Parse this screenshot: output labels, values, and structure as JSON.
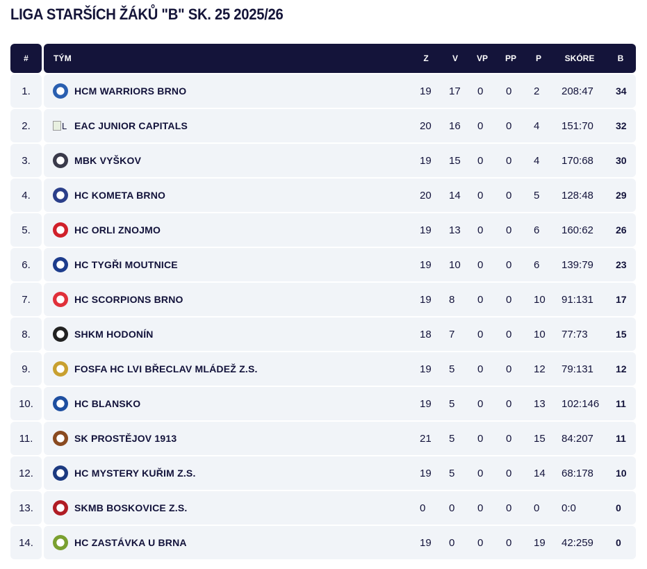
{
  "title": "LIGA STARŠÍCH ŽÁKŮ \"B\" SK. 25 2025/26",
  "header": {
    "rank": "#",
    "team": "TÝM",
    "z": "Z",
    "v": "V",
    "vp": "VP",
    "pp": "PP",
    "p": "P",
    "score": "SKÓRE",
    "b": "B"
  },
  "rows": [
    {
      "rank": "1.",
      "team": "HCM WARRIORS BRNO",
      "z": "19",
      "v": "17",
      "vp": "0",
      "pp": "0",
      "p": "2",
      "score": "208:47",
      "b": "34",
      "logo": "#2a5fb0"
    },
    {
      "rank": "2.",
      "team": "EAC JUNIOR CAPITALS",
      "z": "20",
      "v": "16",
      "vp": "0",
      "pp": "0",
      "p": "4",
      "score": "151:70",
      "b": "32",
      "logo": "broken",
      "alt": "L"
    },
    {
      "rank": "3.",
      "team": "MBK VYŠKOV",
      "z": "19",
      "v": "15",
      "vp": "0",
      "pp": "0",
      "p": "4",
      "score": "170:68",
      "b": "30",
      "logo": "#3a3a4a"
    },
    {
      "rank": "4.",
      "team": "HC KOMETA BRNO",
      "z": "20",
      "v": "14",
      "vp": "0",
      "pp": "0",
      "p": "5",
      "score": "128:48",
      "b": "29",
      "logo": "#2b3f8a"
    },
    {
      "rank": "5.",
      "team": "HC ORLI ZNOJMO",
      "z": "19",
      "v": "13",
      "vp": "0",
      "pp": "0",
      "p": "6",
      "score": "160:62",
      "b": "26",
      "logo": "#d0202a"
    },
    {
      "rank": "6.",
      "team": "HC TYGŘI MOUTNICE",
      "z": "19",
      "v": "10",
      "vp": "0",
      "pp": "0",
      "p": "6",
      "score": "139:79",
      "b": "23",
      "logo": "#1d3c8c"
    },
    {
      "rank": "7.",
      "team": "HC SCORPIONS BRNO",
      "z": "19",
      "v": "8",
      "vp": "0",
      "pp": "0",
      "p": "10",
      "score": "91:131",
      "b": "17",
      "logo": "#e0303a"
    },
    {
      "rank": "8.",
      "team": "SHKM HODONÍN",
      "z": "18",
      "v": "7",
      "vp": "0",
      "pp": "0",
      "p": "10",
      "score": "77:73",
      "b": "15",
      "logo": "#222222"
    },
    {
      "rank": "9.",
      "team": "FOSFA HC LVI BŘECLAV MLÁDEŽ Z.S.",
      "z": "19",
      "v": "5",
      "vp": "0",
      "pp": "0",
      "p": "12",
      "score": "79:131",
      "b": "12",
      "logo": "#c8a030"
    },
    {
      "rank": "10.",
      "team": "HC BLANSKO",
      "z": "19",
      "v": "5",
      "vp": "0",
      "pp": "0",
      "p": "13",
      "score": "102:146",
      "b": "11",
      "logo": "#1e4fa0"
    },
    {
      "rank": "11.",
      "team": "SK PROSTĚJOV 1913",
      "z": "21",
      "v": "5",
      "vp": "0",
      "pp": "0",
      "p": "15",
      "score": "84:207",
      "b": "11",
      "logo": "#8a4a20"
    },
    {
      "rank": "12.",
      "team": "HC MYSTERY KUŘIM Z.S.",
      "z": "19",
      "v": "5",
      "vp": "0",
      "pp": "0",
      "p": "14",
      "score": "68:178",
      "b": "10",
      "logo": "#1c3a80"
    },
    {
      "rank": "13.",
      "team": "SKMB BOSKOVICE Z.S.",
      "z": "0",
      "v": "0",
      "vp": "0",
      "pp": "0",
      "p": "0",
      "score": "0:0",
      "b": "0",
      "logo": "#b01c24"
    },
    {
      "rank": "14.",
      "team": "HC ZASTÁVKA U BRNA",
      "z": "19",
      "v": "0",
      "vp": "0",
      "pp": "0",
      "p": "19",
      "score": "42:259",
      "b": "0",
      "logo": "#7aa030"
    }
  ]
}
